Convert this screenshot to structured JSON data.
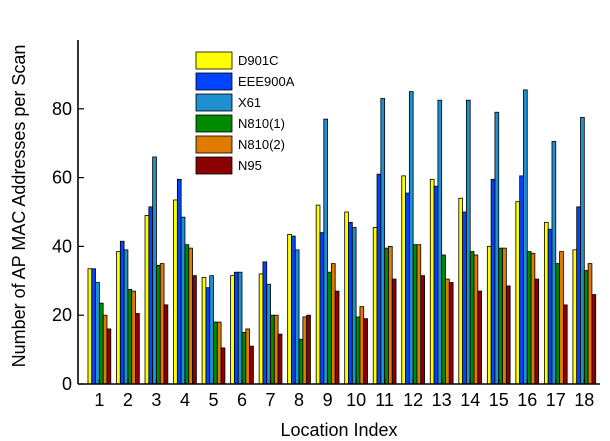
{
  "chart_data": {
    "type": "bar",
    "title": "",
    "xlabel": "Location Index",
    "ylabel": "Number of AP MAC Addresses per Scan",
    "ylim": [
      0,
      100
    ],
    "yticks": [
      0,
      20,
      40,
      60,
      80
    ],
    "categories": [
      "1",
      "2",
      "3",
      "4",
      "5",
      "6",
      "7",
      "8",
      "9",
      "10",
      "11",
      "12",
      "13",
      "14",
      "15",
      "16",
      "17",
      "18"
    ],
    "legend_position": "upper-left",
    "grid": false,
    "series": [
      {
        "name": "D901C",
        "color": "#ffff00",
        "values": [
          33.5,
          38.5,
          49,
          53.5,
          31,
          31.5,
          32,
          43.5,
          52,
          50,
          45.5,
          60.5,
          59.5,
          54,
          40,
          53,
          47,
          39
        ]
      },
      {
        "name": "EEE900A",
        "color": "#0044ff",
        "values": [
          33.5,
          41.5,
          51.5,
          59.5,
          28,
          32.5,
          35.5,
          43,
          44,
          47,
          61,
          55.5,
          57.5,
          50,
          59.5,
          60.5,
          45,
          51.5
        ]
      },
      {
        "name": "X61",
        "color": "#1e90d0",
        "values": [
          29.5,
          39,
          66,
          48.5,
          31.5,
          32.5,
          29,
          39,
          77,
          45.5,
          83,
          85,
          82.5,
          82.5,
          79,
          85.5,
          70.5,
          77.5
        ]
      },
      {
        "name": "N810(1)",
        "color": "#008a00",
        "values": [
          23.5,
          27.5,
          34.5,
          40.5,
          18,
          15,
          20,
          13,
          32.5,
          19.5,
          39.5,
          40.5,
          37.5,
          38.5,
          39.5,
          38.5,
          35,
          33
        ]
      },
      {
        "name": "N810(2)",
        "color": "#e07a00",
        "values": [
          20,
          27,
          35,
          39.5,
          18,
          16,
          20,
          19.5,
          35,
          22.5,
          40,
          40.5,
          30.5,
          37.5,
          39.5,
          38,
          38.5,
          35
        ]
      },
      {
        "name": "N95",
        "color": "#8b0000",
        "values": [
          16,
          20.5,
          23,
          31.5,
          10.5,
          11,
          14.5,
          20,
          27,
          19,
          30.5,
          31.5,
          29.5,
          27,
          28.5,
          30.5,
          23,
          26
        ]
      }
    ]
  }
}
